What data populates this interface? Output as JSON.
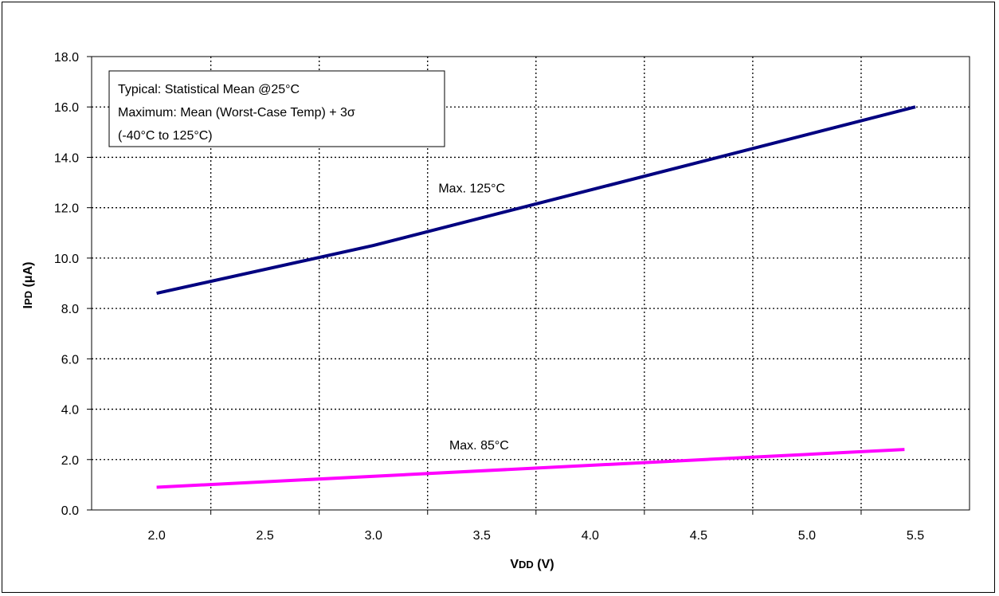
{
  "chart_data": {
    "type": "line",
    "xlabel": "VDD (V)",
    "ylabel": "IPD (μA)",
    "xlabel_main": "V",
    "xlabel_sub": "DD",
    "xlabel_rest": " (V)",
    "ylabel_main": "I",
    "ylabel_sub": "PD",
    "ylabel_rest": " (μA)",
    "xlim": [
      1.7,
      5.75
    ],
    "ylim": [
      0,
      18
    ],
    "x_ticks": [
      2.0,
      2.5,
      3.0,
      3.5,
      4.0,
      4.5,
      5.0,
      5.5
    ],
    "x_tick_labels": [
      "2.0",
      "2.5",
      "3.0",
      "3.5",
      "4.0",
      "4.5",
      "5.0",
      "5.5"
    ],
    "y_ticks": [
      0,
      2,
      4,
      6,
      8,
      10,
      12,
      14,
      16,
      18
    ],
    "y_tick_labels": [
      "0.0",
      "2.0",
      "4.0",
      "6.0",
      "8.0",
      "10.0",
      "12.0",
      "14.0",
      "16.0",
      "18.0"
    ],
    "x_grid": [
      2.25,
      2.75,
      3.25,
      3.75,
      4.25,
      4.75,
      5.25
    ],
    "grid": true,
    "grid_style": "dotted",
    "series": [
      {
        "name": "Max. 125°C",
        "color": "#000080",
        "x": [
          2.0,
          3.0,
          5.5
        ],
        "y": [
          8.6,
          10.5,
          16.0
        ]
      },
      {
        "name": "Max. 85°C",
        "color": "#ff00ff",
        "x": [
          2.0,
          5.45
        ],
        "y": [
          0.9,
          2.4
        ]
      }
    ],
    "annotations": [
      {
        "text": "Max. 125°C",
        "x": 3.3,
        "y": 12.6
      },
      {
        "text": "Max. 85°C",
        "x": 3.35,
        "y": 2.4
      }
    ],
    "legend": {
      "placement": "top-left",
      "lines": [
        "Typical: Statistical Mean @25°C",
        "Maximum: Mean (Worst-Case Temp) + 3σ",
        "(-40°C to 125°C)"
      ]
    }
  }
}
